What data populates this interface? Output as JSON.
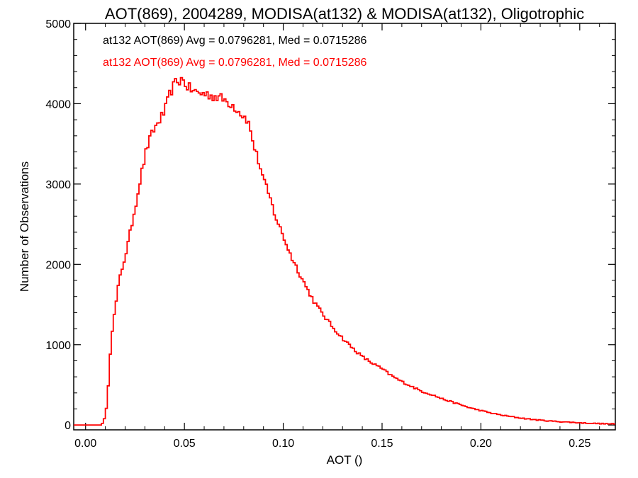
{
  "chart_data": {
    "type": "histogram",
    "title": "AOT(869), 2004289, MODISA(at132) & MODISA(at132), Oligotrophic",
    "xlabel": "AOT ()",
    "ylabel": "Number of Observations",
    "xlim": [
      -0.006,
      0.268
    ],
    "ylim": [
      -60,
      5000
    ],
    "xticks": [
      0.0,
      0.05,
      0.1,
      0.15,
      0.2,
      0.25
    ],
    "xtick_labels": [
      "0.00",
      "0.05",
      "0.10",
      "0.15",
      "0.20",
      "0.25"
    ],
    "yticks": [
      0,
      1000,
      2000,
      3000,
      4000,
      5000
    ],
    "ytick_labels": [
      "0",
      "1000",
      "2000",
      "3000",
      "4000",
      "5000"
    ],
    "grid": false,
    "legend_position": "top-left",
    "bin_width": 0.001,
    "annotations": [
      {
        "text": "at132 AOT(869) Avg = 0.0796281, Med = 0.0715286",
        "color": "#000000"
      },
      {
        "text": "at132 AOT(869) Avg = 0.0796281, Med = 0.0715286",
        "color": "#ff0000"
      }
    ],
    "series": [
      {
        "color": "#ff0000",
        "shape_points": [
          [
            -0.006,
            0
          ],
          [
            0.008,
            0
          ],
          [
            0.01,
            100
          ],
          [
            0.011,
            300
          ],
          [
            0.012,
            700
          ],
          [
            0.013,
            1100
          ],
          [
            0.015,
            1450
          ],
          [
            0.017,
            1800
          ],
          [
            0.019,
            2000
          ],
          [
            0.021,
            2200
          ],
          [
            0.023,
            2450
          ],
          [
            0.025,
            2700
          ],
          [
            0.028,
            3100
          ],
          [
            0.031,
            3450
          ],
          [
            0.034,
            3650
          ],
          [
            0.037,
            3780
          ],
          [
            0.04,
            3900
          ],
          [
            0.043,
            4150
          ],
          [
            0.046,
            4280
          ],
          [
            0.049,
            4300
          ],
          [
            0.052,
            4200
          ],
          [
            0.055,
            4150
          ],
          [
            0.058,
            4130
          ],
          [
            0.061,
            4120
          ],
          [
            0.064,
            4100
          ],
          [
            0.067,
            4080
          ],
          [
            0.07,
            4050
          ],
          [
            0.073,
            4010
          ],
          [
            0.076,
            3950
          ],
          [
            0.079,
            3870
          ],
          [
            0.082,
            3800
          ],
          [
            0.084,
            3600
          ],
          [
            0.086,
            3400
          ],
          [
            0.088,
            3250
          ],
          [
            0.09,
            3050
          ],
          [
            0.093,
            2850
          ],
          [
            0.096,
            2600
          ],
          [
            0.1,
            2350
          ],
          [
            0.104,
            2100
          ],
          [
            0.108,
            1900
          ],
          [
            0.112,
            1700
          ],
          [
            0.116,
            1520
          ],
          [
            0.12,
            1380
          ],
          [
            0.125,
            1220
          ],
          [
            0.13,
            1080
          ],
          [
            0.135,
            960
          ],
          [
            0.14,
            850
          ],
          [
            0.145,
            770
          ],
          [
            0.15,
            700
          ],
          [
            0.155,
            610
          ],
          [
            0.16,
            540
          ],
          [
            0.165,
            480
          ],
          [
            0.17,
            420
          ],
          [
            0.175,
            380
          ],
          [
            0.18,
            330
          ],
          [
            0.185,
            290
          ],
          [
            0.19,
            250
          ],
          [
            0.195,
            210
          ],
          [
            0.2,
            180
          ],
          [
            0.205,
            150
          ],
          [
            0.21,
            125
          ],
          [
            0.215,
            105
          ],
          [
            0.22,
            88
          ],
          [
            0.225,
            72
          ],
          [
            0.23,
            60
          ],
          [
            0.235,
            50
          ],
          [
            0.24,
            42
          ],
          [
            0.245,
            35
          ],
          [
            0.25,
            28
          ],
          [
            0.255,
            22
          ],
          [
            0.26,
            18
          ],
          [
            0.265,
            14
          ],
          [
            0.268,
            12
          ]
        ]
      }
    ]
  }
}
